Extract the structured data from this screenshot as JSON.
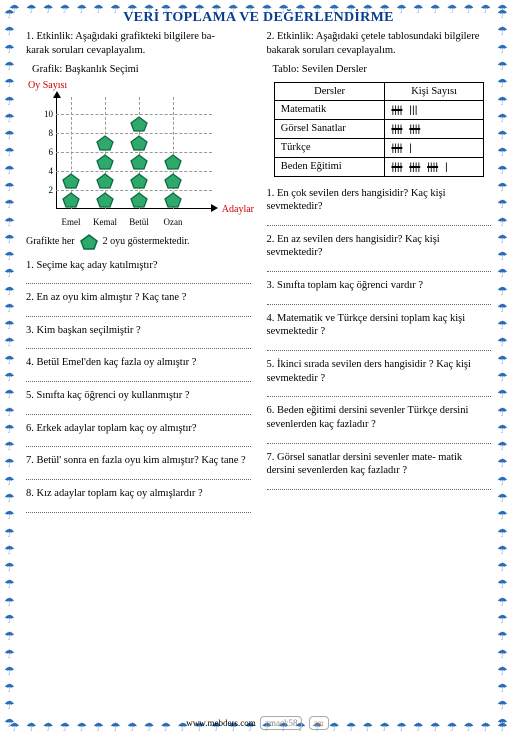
{
  "title": "VERİ TOPLAMA VE DEĞERLENDİRME",
  "left": {
    "intro": "1. Etkinlik: Aşağıdaki grafikteki bilgilere ba-\nkarak soruları cevaplayalım.",
    "chart_title": "Grafik: Başkanlık  Seçimi",
    "y_label": "Oy Sayısı",
    "x_label": "Adaylar",
    "y_ticks": [
      "2",
      "4",
      "6",
      "8",
      "10"
    ],
    "x_ticks": [
      "Emel",
      "Kemal",
      "Betül",
      "Ozan"
    ],
    "legend": "Grafikte her        2 oyu göstermektedir.",
    "pent_fill": "#2fa96b",
    "pent_stroke": "#0d6b3e",
    "counts": {
      "Emel": 2,
      "Kemal": 4,
      "Betül": 5,
      "Ozan": 3
    },
    "q1": "1. Seçime kaç aday katılmıştır?",
    "q2": "2. En az oyu kim almıştır ? Kaç tane ?",
    "q3": "3. Kim başkan seçilmiştir ?",
    "q4": "4. Betül Emel'den kaç fazla oy  almıştır ?",
    "q5": "5. Sınıfta kaç öğrenci  oy kullanmıştır ?",
    "q6": "6. Erkek  adaylar  toplam kaç oy almıştır?",
    "q7": "7. Betül' sonra en fazla oyu kim almıştır? Kaç tane ?",
    "q8": "8. Kız adaylar toplam kaç oy almışlardır ?"
  },
  "right": {
    "intro": "2. Etkinlik: Aşağıdaki çetele tablosundaki bilgilere bakarak soruları cevaplayalım.",
    "table_title": "Tablo: Sevilen Dersler",
    "th1": "Dersler",
    "th2": "Kişi Sayısı",
    "rows": [
      {
        "name": "Matematik",
        "tally": "5+3"
      },
      {
        "name": "Görsel Sanatlar",
        "tally": "5+5"
      },
      {
        "name": "Türkçe",
        "tally": "5+1"
      },
      {
        "name": "Beden Eğitimi",
        "tally": "5+5+5+1"
      }
    ],
    "q1": "1. En çok sevilen ders hangisidir? Kaç kişi sevmektedir?",
    "q2": "2. En az sevilen ders hangisidir? Kaç kişi sevmektedir?",
    "q3": "3. Sınıfta toplam  kaç öğrenci vardır ?",
    "q4": "4. Matematik ve Türkçe dersini toplam kaç kişi sevmektedir ?",
    "q5": "5. İkinci sırada sevilen ders hangisidir ? Kaç kişi sevmektedir ?",
    "q6": "6. Beden eğitimi dersini sevenler Türkçe dersini sevenlerden kaç fazladır ?",
    "q7": "7. Görsel sanatlar dersini sevenler mate- matik dersini sevenlerden kaç fazladır ?"
  },
  "footer": {
    "site": "www.mebders.com",
    "tag1": "zmack58",
    "tag2": "zm"
  }
}
